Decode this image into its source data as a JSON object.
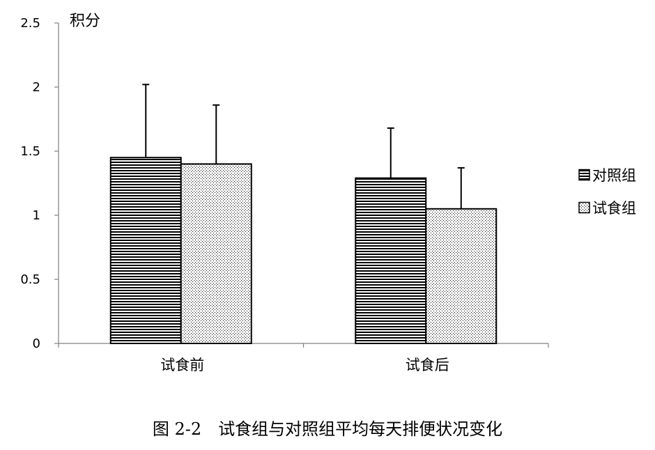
{
  "caption": "图 2-2　试食组与对照组平均每天排便状况变化",
  "chart_data": {
    "type": "bar",
    "title": "",
    "ylabel": "积分",
    "xlabel": "",
    "ylim": [
      0,
      2.5
    ],
    "yticks": [
      0,
      0.5,
      1,
      1.5,
      2,
      2.5
    ],
    "ytick_labels": [
      "0",
      "0.5",
      "1",
      "1.5",
      "2",
      "2.5"
    ],
    "categories": [
      "试食前",
      "试食后"
    ],
    "series": [
      {
        "name": "对照组",
        "pattern": "horizontal-lines",
        "values": [
          1.45,
          1.29
        ],
        "errors": [
          0.57,
          0.39
        ]
      },
      {
        "name": "试食组",
        "pattern": "dots",
        "values": [
          1.4,
          1.05
        ],
        "errors": [
          0.46,
          0.32
        ]
      }
    ],
    "error_bars": "upper-only",
    "legend_position": "right",
    "grid": false,
    "colors": {
      "bar_stroke": "#000000",
      "bar_fill": "#ffffff"
    }
  }
}
